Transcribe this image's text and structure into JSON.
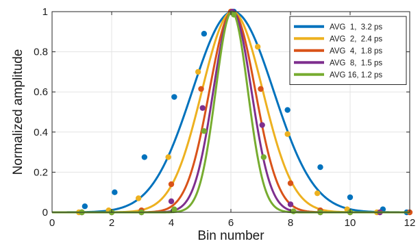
{
  "chart_data": {
    "type": "line",
    "xlabel": "Bin number",
    "ylabel": "Normalized amplitude",
    "xlim": [
      0,
      12
    ],
    "ylim": [
      0,
      1
    ],
    "x_ticks": [
      0,
      2,
      4,
      6,
      8,
      10,
      12
    ],
    "y_ticks": [
      0,
      0.2,
      0.4,
      0.6,
      0.8,
      1
    ],
    "x_tick_labels": [
      "0",
      "2",
      "4",
      "6",
      "8",
      "10",
      "12"
    ],
    "y_tick_labels": [
      "0",
      "0.2",
      "0.4",
      "0.6",
      "0.8",
      "1"
    ],
    "grid": true,
    "legend_position": "top-right",
    "series": [
      {
        "name": "AVG  1,  3.2 ps",
        "color": "#0072BD",
        "curve": {
          "center": 6.07,
          "sigma": 1.36
        },
        "points": [
          {
            "x": 1.1,
            "y": 0.03
          },
          {
            "x": 2.1,
            "y": 0.1
          },
          {
            "x": 3.1,
            "y": 0.275
          },
          {
            "x": 4.1,
            "y": 0.575
          },
          {
            "x": 5.1,
            "y": 0.89
          },
          {
            "x": 6.1,
            "y": 1.0
          },
          {
            "x": 7.9,
            "y": 0.51
          },
          {
            "x": 9.0,
            "y": 0.225
          },
          {
            "x": 10.0,
            "y": 0.075
          },
          {
            "x": 11.1,
            "y": 0.015
          },
          {
            "x": 11.9,
            "y": 0.0
          }
        ]
      },
      {
        "name": "AVG  2,  2.4 ps",
        "color": "#EDB120",
        "curve": {
          "center": 6.05,
          "sigma": 1.02
        },
        "points": [
          {
            "x": 0.9,
            "y": 0.0
          },
          {
            "x": 1.9,
            "y": 0.01
          },
          {
            "x": 2.9,
            "y": 0.07
          },
          {
            "x": 3.9,
            "y": 0.275
          },
          {
            "x": 4.9,
            "y": 0.7
          },
          {
            "x": 6.0,
            "y": 1.0
          },
          {
            "x": 6.9,
            "y": 0.825
          },
          {
            "x": 7.9,
            "y": 0.39
          },
          {
            "x": 8.9,
            "y": 0.095
          },
          {
            "x": 9.9,
            "y": 0.015
          },
          {
            "x": 10.9,
            "y": 0.0
          }
        ]
      },
      {
        "name": "AVG  4,  1.8 ps",
        "color": "#D95319",
        "curve": {
          "center": 6.05,
          "sigma": 0.77
        },
        "points": [
          {
            "x": 1.0,
            "y": 0.0
          },
          {
            "x": 2.0,
            "y": 0.0
          },
          {
            "x": 3.0,
            "y": 0.01
          },
          {
            "x": 4.0,
            "y": 0.14
          },
          {
            "x": 5.0,
            "y": 0.615
          },
          {
            "x": 6.0,
            "y": 1.0
          },
          {
            "x": 7.0,
            "y": 0.615
          },
          {
            "x": 8.0,
            "y": 0.145
          },
          {
            "x": 9.0,
            "y": 0.01
          },
          {
            "x": 10.0,
            "y": 0.0
          },
          {
            "x": 11.0,
            "y": 0.0
          },
          {
            "x": 12.0,
            "y": 0.0
          }
        ]
      },
      {
        "name": "AVG  8,  1.5 ps",
        "color": "#7E2F8E",
        "curve": {
          "center": 6.05,
          "sigma": 0.64
        },
        "points": [
          {
            "x": 1.0,
            "y": 0.0
          },
          {
            "x": 2.0,
            "y": 0.0
          },
          {
            "x": 3.0,
            "y": 0.0
          },
          {
            "x": 4.0,
            "y": 0.055
          },
          {
            "x": 5.05,
            "y": 0.52
          },
          {
            "x": 6.05,
            "y": 1.0
          },
          {
            "x": 7.05,
            "y": 0.435
          },
          {
            "x": 8.0,
            "y": 0.04
          },
          {
            "x": 9.0,
            "y": 0.0
          },
          {
            "x": 10.0,
            "y": 0.0
          },
          {
            "x": 11.0,
            "y": 0.0
          }
        ]
      },
      {
        "name": "AVG 16, 1.2 ps",
        "color": "#77AC30",
        "curve": {
          "center": 6.03,
          "sigma": 0.54
        },
        "points": [
          {
            "x": 1.0,
            "y": 0.0
          },
          {
            "x": 2.0,
            "y": 0.0
          },
          {
            "x": 3.0,
            "y": 0.0
          },
          {
            "x": 4.1,
            "y": 0.015
          },
          {
            "x": 5.1,
            "y": 0.405
          },
          {
            "x": 6.1,
            "y": 0.985
          },
          {
            "x": 7.1,
            "y": 0.275
          },
          {
            "x": 8.1,
            "y": 0.005
          },
          {
            "x": 9.0,
            "y": 0.0
          },
          {
            "x": 10.0,
            "y": 0.0
          }
        ]
      }
    ]
  }
}
